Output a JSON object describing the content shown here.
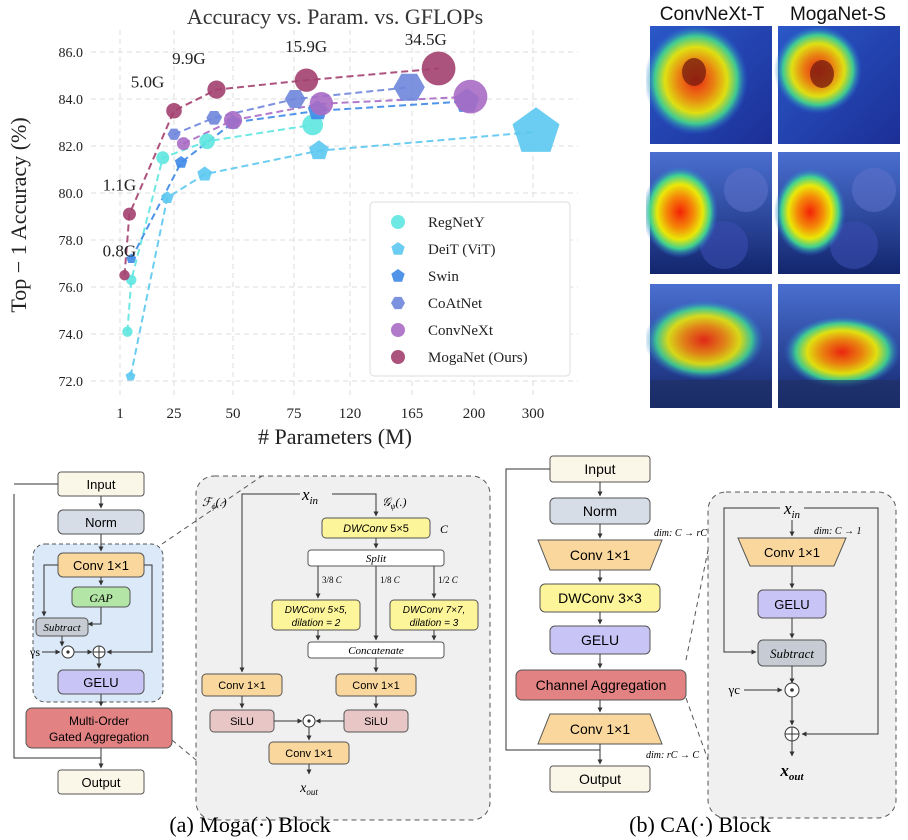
{
  "chart_data": {
    "type": "scatter",
    "title": "Accuracy vs. Param. vs. GFLOPs",
    "xlabel": "# Parameters (M)",
    "ylabel": "Top − 1 Accuracy (%)",
    "x_ticks": [
      "1",
      "25",
      "50",
      "75",
      "120",
      "165",
      "200",
      "300"
    ],
    "y_ticks": [
      "72.0",
      "74.0",
      "76.0",
      "78.0",
      "80.0",
      "82.0",
      "84.0",
      "86.0"
    ],
    "ylim": [
      71.8,
      87.0
    ],
    "grid": true,
    "legend_position": "bottom-right",
    "gflops_labels": [
      {
        "text": "0.8G",
        "x": 2.5,
        "y": 77.3
      },
      {
        "text": "1.1G",
        "x": 2.5,
        "y": 80.1
      },
      {
        "text": "5.0G",
        "x": 15,
        "y": 84.5
      },
      {
        "text": "9.9G",
        "x": 33,
        "y": 85.5
      },
      {
        "text": "15.9G",
        "x": 88,
        "y": 86.0
      },
      {
        "text": "34.5G",
        "x": 175,
        "y": 86.3
      }
    ],
    "series": [
      {
        "name": "RegNetY",
        "color": "#5ee6e0",
        "marker": "circle",
        "points": [
          [
            4.3,
            74.1
          ],
          [
            6.0,
            76.3
          ],
          [
            20,
            81.5
          ],
          [
            39,
            82.2
          ],
          [
            90,
            82.9
          ]
        ],
        "sizes": [
          4,
          4,
          5,
          6,
          8
        ]
      },
      {
        "name": "DeiT (ViT)",
        "color": "#5bc8f0",
        "marker": "pentagon",
        "points": [
          [
            5.7,
            72.2
          ],
          [
            22,
            79.8
          ],
          [
            38,
            80.8
          ],
          [
            95,
            81.8
          ],
          [
            305,
            82.6
          ]
        ],
        "sizes": [
          4,
          5,
          6,
          8,
          19
        ]
      },
      {
        "name": "Swin",
        "color": "#3d88e8",
        "marker": "pentagon",
        "points": [
          [
            6.0,
            77.2
          ],
          [
            28,
            81.3
          ],
          [
            50,
            83.0
          ],
          [
            94,
            83.5
          ],
          [
            196,
            83.9
          ]
        ],
        "sizes": [
          4,
          5,
          6,
          8,
          10
        ]
      },
      {
        "name": "CoAtNet",
        "color": "#6e86dc",
        "marker": "hexagon",
        "points": [
          [
            25,
            82.5
          ],
          [
            42,
            83.2
          ],
          [
            76,
            84.0
          ],
          [
            163,
            84.5
          ]
        ],
        "sizes": [
          5,
          6,
          8,
          12
        ]
      },
      {
        "name": "ConvNeXt",
        "color": "#a86cc4",
        "marker": "circle",
        "points": [
          [
            29,
            82.1
          ],
          [
            50,
            83.1
          ],
          [
            97,
            83.8
          ],
          [
            198,
            84.1
          ]
        ],
        "sizes": [
          5,
          7,
          9,
          13
        ]
      },
      {
        "name": "MogaNet (Ours)",
        "color": "#a3406f",
        "marker": "circle",
        "points": [
          [
            3,
            76.5
          ],
          [
            5.2,
            79.1
          ],
          [
            25,
            83.5
          ],
          [
            43,
            84.4
          ],
          [
            85,
            84.8
          ],
          [
            180,
            85.3
          ]
        ],
        "sizes": [
          4,
          5,
          6,
          7,
          9,
          13
        ]
      }
    ]
  },
  "heatmaps": {
    "col_left": "ConvNeXt-T",
    "col_right": "MogaNet-S"
  },
  "moga_block": {
    "caption": "(a) Moga(·) Block",
    "input": "Input",
    "norm": "Norm",
    "conv": "Conv 1×1",
    "gap": "GAP",
    "subtract": "Subtract",
    "gamma": "γs",
    "gelu": "GELU",
    "moga": "Multi-Order Gated Aggregation",
    "output": "Output",
    "detail": {
      "x_in": "x_in",
      "f_phi": "F_φ(.)",
      "g_psi": "G_ψ(.)",
      "dwconv5": "DWConv 5×5",
      "c_label": "C",
      "split": "Split",
      "frac_38": "3/8 C",
      "frac_18": "1/8 C",
      "frac_12": "1/2 C",
      "dw55": "DWConv 5×5,",
      "dil2": "dilation = 2",
      "dw77": "DWConv 7×7,",
      "dil3": "dilation = 3",
      "concat": "Concatenate",
      "conv_left": "Conv 1×1",
      "conv_right": "Conv 1×1",
      "silu_left": "SiLU",
      "silu_right": "SiLU",
      "conv_out": "Conv 1×1",
      "x_out": "x_out"
    }
  },
  "ca_block": {
    "caption": "(b) CA(·) Block",
    "input": "Input",
    "norm": "Norm",
    "dim1": "dim: C → rC",
    "conv1": "Conv 1×1",
    "dwconv": "DWConv 3×3",
    "gelu": "GELU",
    "channel_agg": "Channel Aggregation",
    "conv2": "Conv 1×1",
    "dim2": "dim: rC → C",
    "output": "Output",
    "detail": {
      "x_in": "x_in",
      "dim": "dim: C → 1",
      "conv": "Conv 1×1",
      "gelu": "GELU",
      "subtract": "Subtract",
      "gamma": "γc",
      "x_out": "x_out"
    }
  }
}
